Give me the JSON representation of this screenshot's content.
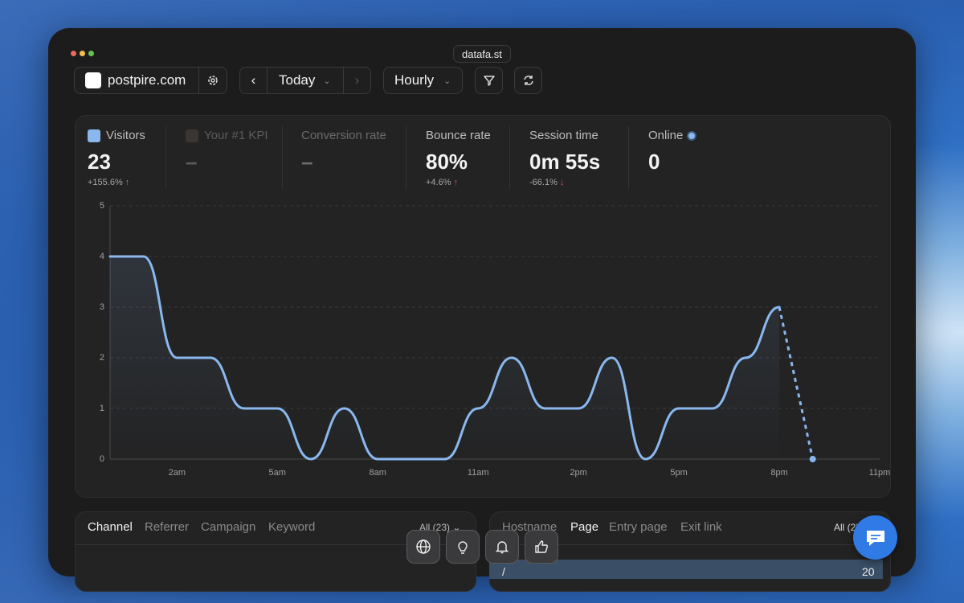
{
  "browser": {
    "url": "datafa.st"
  },
  "toolbar": {
    "site": "postpire.com",
    "period": "Today",
    "granularity": "Hourly"
  },
  "stats": [
    {
      "label": "Visitors",
      "value": "23",
      "change": "+155.6%"
    },
    {
      "label": "Your #1 KPI",
      "value": "–"
    },
    {
      "label": "Conversion rate",
      "value": "–"
    },
    {
      "label": "Bounce rate",
      "value": "80%",
      "change": "+4.6%"
    },
    {
      "label": "Session time",
      "value": "0m 55s",
      "change": "-66.1%"
    },
    {
      "label": "Online",
      "value": "0"
    }
  ],
  "chart_data": {
    "type": "line",
    "categories": [
      null,
      null,
      "2am",
      null,
      null,
      "5am",
      null,
      null,
      "8am",
      null,
      null,
      "11am",
      null,
      null,
      "2pm",
      null,
      null,
      "5pm",
      null,
      null,
      "8pm",
      null,
      null,
      "11pm"
    ],
    "series": [
      {
        "name": "Visitors",
        "color": "#8ab8ee",
        "values": [
          4,
          4,
          2,
          2,
          1,
          1,
          0,
          1,
          0,
          0,
          0,
          1,
          2,
          1,
          1,
          2,
          0,
          1,
          1,
          2,
          3,
          0,
          null,
          null
        ]
      }
    ],
    "ylim": [
      0,
      5
    ],
    "yticks": [
      0,
      1,
      2,
      3,
      4,
      5
    ],
    "grid": true
  },
  "left_panel": {
    "tabs": [
      "Channel",
      "Referrer",
      "Campaign",
      "Keyword"
    ],
    "filter": "All (23)"
  },
  "right_panel": {
    "tabs": [
      "Hostname",
      "Page",
      "Entry page",
      "Exit link"
    ],
    "filter": "All (2)",
    "rows": [
      [
        "/",
        "20"
      ]
    ]
  }
}
